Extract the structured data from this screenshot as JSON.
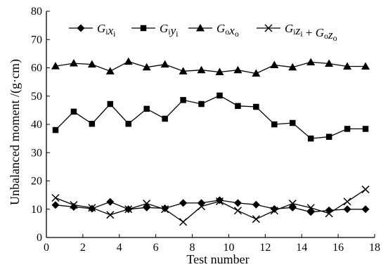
{
  "chart_data": {
    "type": "line",
    "xlabel": "Test number",
    "ylabel": "Unbalanced moment /(g·cm)",
    "xlim": [
      0,
      18
    ],
    "ylim": [
      0,
      80
    ],
    "x_ticks": [
      0,
      2,
      4,
      6,
      8,
      10,
      12,
      14,
      16,
      18
    ],
    "y_ticks": [
      0,
      10,
      20,
      30,
      40,
      50,
      60,
      70,
      80
    ],
    "grid": false,
    "legend_position": "top",
    "x": [
      0.5,
      1.5,
      2.5,
      3.5,
      4.5,
      5.5,
      6.5,
      7.5,
      8.5,
      9.5,
      10.5,
      11.5,
      12.5,
      13.5,
      14.5,
      15.5,
      16.5,
      17.5
    ],
    "series": [
      {
        "key": "gixi",
        "name": "G_i x_i",
        "marker": "diamond",
        "values": [
          11.5,
          10.8,
          10.2,
          12.6,
          10.0,
          10.6,
          10.3,
          12.2,
          12.2,
          13.2,
          12.2,
          11.6,
          10.1,
          10.6,
          9.0,
          9.6,
          10.0,
          10.0
        ]
      },
      {
        "key": "giyi",
        "name": "G_i y_i",
        "marker": "square",
        "values": [
          38.0,
          44.5,
          40.2,
          47.2,
          40.2,
          45.5,
          42.0,
          48.6,
          47.2,
          50.2,
          46.5,
          46.2,
          40.0,
          40.5,
          35.0,
          35.6,
          38.4,
          38.4
        ]
      },
      {
        "key": "goxo",
        "name": "G_o x_o",
        "marker": "triangle",
        "values": [
          60.6,
          61.6,
          61.2,
          58.8,
          62.2,
          60.2,
          61.2,
          58.8,
          59.2,
          58.5,
          59.2,
          58.0,
          61.0,
          60.2,
          62.0,
          61.5,
          60.5,
          60.5
        ]
      },
      {
        "key": "sum",
        "name": "G_i z_i + G_o z_o",
        "marker": "x",
        "values": [
          14.0,
          11.5,
          10.5,
          8.0,
          10.0,
          12.0,
          10.0,
          5.5,
          11.0,
          12.8,
          9.5,
          6.5,
          9.5,
          12.0,
          10.5,
          8.5,
          12.7,
          17.0
        ]
      }
    ]
  }
}
